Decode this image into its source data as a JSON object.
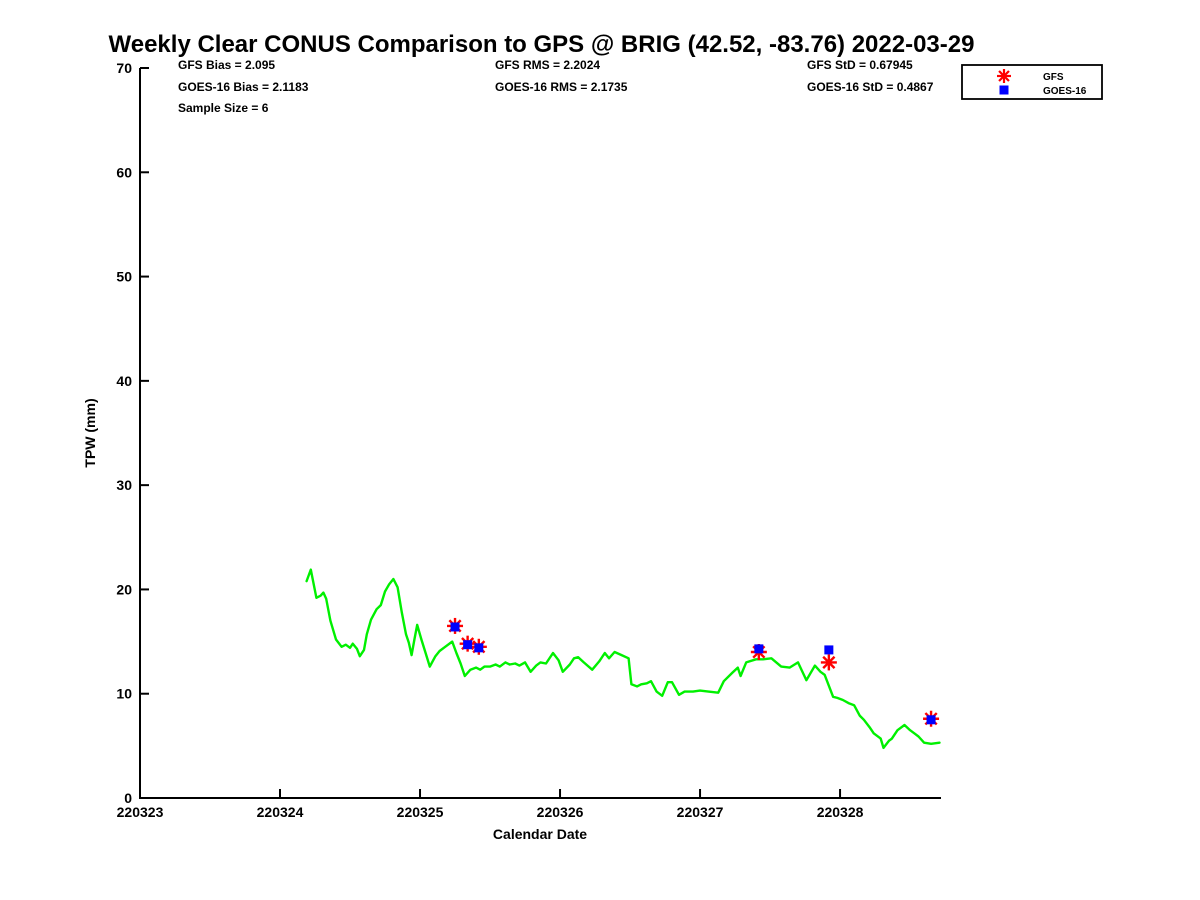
{
  "title": "Weekly Clear CONUS Comparison to GPS @ BRIG (42.52, -83.76) 2022-03-29",
  "stats": {
    "col1": [
      "GFS Bias = 2.095",
      "GOES-16 Bias = 2.1183",
      "Sample Size = 6"
    ],
    "col2": [
      "GFS RMS = 2.2024",
      "GOES-16 RMS = 2.1735"
    ],
    "col3": [
      "GFS StD = 0.67945",
      "GOES-16 StD = 0.4867"
    ]
  },
  "legend": {
    "items": [
      {
        "label": "GFS",
        "marker": "asterisk",
        "color": "#ff0000"
      },
      {
        "label": "GOES-16",
        "marker": "square",
        "color": "#0000ff"
      }
    ]
  },
  "chart_data": {
    "type": "line",
    "title": "Weekly Clear CONUS Comparison to GPS @ BRIG (42.52, -83.76) 2022-03-29",
    "xlabel": "Calendar Date",
    "ylabel": "TPW (mm)",
    "xlim": [
      220323,
      220328.721
    ],
    "ylim": [
      0,
      70
    ],
    "x_ticks": [
      220323,
      220324,
      220325,
      220326,
      220327,
      220328
    ],
    "y_ticks": [
      0,
      10,
      20,
      30,
      40,
      50,
      60,
      70
    ],
    "grid": false,
    "legend_position": "top-right",
    "series": [
      {
        "name": "GPS",
        "type": "line",
        "color": "#00f000",
        "points": [
          [
            220324.19,
            20.8
          ],
          [
            220324.22,
            21.9
          ],
          [
            220324.26,
            19.2
          ],
          [
            220324.29,
            19.4
          ],
          [
            220324.31,
            19.7
          ],
          [
            220324.33,
            19.1
          ],
          [
            220324.36,
            17.0
          ],
          [
            220324.4,
            15.2
          ],
          [
            220324.44,
            14.5
          ],
          [
            220324.47,
            14.7
          ],
          [
            220324.5,
            14.4
          ],
          [
            220324.52,
            14.8
          ],
          [
            220324.55,
            14.3
          ],
          [
            220324.57,
            13.6
          ],
          [
            220324.6,
            14.2
          ],
          [
            220324.62,
            15.7
          ],
          [
            220324.65,
            17.1
          ],
          [
            220324.69,
            18.1
          ],
          [
            220324.72,
            18.5
          ],
          [
            220324.75,
            19.8
          ],
          [
            220324.78,
            20.5
          ],
          [
            220324.81,
            21.0
          ],
          [
            220324.84,
            20.2
          ],
          [
            220324.87,
            17.8
          ],
          [
            220324.9,
            15.7
          ],
          [
            220324.92,
            14.9
          ],
          [
            220324.94,
            13.7
          ],
          [
            220324.96,
            15.2
          ],
          [
            220324.98,
            16.6
          ],
          [
            220325.01,
            15.2
          ],
          [
            220325.04,
            13.9
          ],
          [
            220325.07,
            12.6
          ],
          [
            220325.11,
            13.6
          ],
          [
            220325.14,
            14.1
          ],
          [
            220325.18,
            14.5
          ],
          [
            220325.23,
            15.0
          ],
          [
            220325.26,
            13.9
          ],
          [
            220325.29,
            12.9
          ],
          [
            220325.32,
            11.7
          ],
          [
            220325.36,
            12.3
          ],
          [
            220325.4,
            12.5
          ],
          [
            220325.43,
            12.3
          ],
          [
            220325.46,
            12.6
          ],
          [
            220325.5,
            12.6
          ],
          [
            220325.54,
            12.8
          ],
          [
            220325.57,
            12.6
          ],
          [
            220325.61,
            13.0
          ],
          [
            220325.64,
            12.8
          ],
          [
            220325.68,
            12.9
          ],
          [
            220325.71,
            12.7
          ],
          [
            220325.75,
            13.0
          ],
          [
            220325.79,
            12.1
          ],
          [
            220325.83,
            12.7
          ],
          [
            220325.86,
            13.0
          ],
          [
            220325.9,
            12.9
          ],
          [
            220325.95,
            13.9
          ],
          [
            220325.99,
            13.2
          ],
          [
            220326.02,
            12.1
          ],
          [
            220326.07,
            12.8
          ],
          [
            220326.1,
            13.4
          ],
          [
            220326.13,
            13.5
          ],
          [
            220326.17,
            13.0
          ],
          [
            220326.23,
            12.3
          ],
          [
            220326.28,
            13.1
          ],
          [
            220326.32,
            13.9
          ],
          [
            220326.35,
            13.4
          ],
          [
            220326.39,
            14.0
          ],
          [
            220326.44,
            13.7
          ],
          [
            220326.49,
            13.4
          ],
          [
            220326.51,
            10.9
          ],
          [
            220326.55,
            10.7
          ],
          [
            220326.58,
            10.9
          ],
          [
            220326.62,
            11.0
          ],
          [
            220326.65,
            11.2
          ],
          [
            220326.69,
            10.2
          ],
          [
            220326.73,
            9.8
          ],
          [
            220326.77,
            11.1
          ],
          [
            220326.8,
            11.1
          ],
          [
            220326.85,
            9.9
          ],
          [
            220326.89,
            10.2
          ],
          [
            220326.95,
            10.2
          ],
          [
            220327.0,
            10.3
          ],
          [
            220327.06,
            10.2
          ],
          [
            220327.13,
            10.1
          ],
          [
            220327.17,
            11.2
          ],
          [
            220327.23,
            12.0
          ],
          [
            220327.27,
            12.5
          ],
          [
            220327.29,
            11.7
          ],
          [
            220327.33,
            13.0
          ],
          [
            220327.4,
            13.3
          ],
          [
            220327.45,
            13.3
          ],
          [
            220327.51,
            13.4
          ],
          [
            220327.58,
            12.6
          ],
          [
            220327.64,
            12.5
          ],
          [
            220327.7,
            13.0
          ],
          [
            220327.76,
            11.3
          ],
          [
            220327.82,
            12.7
          ],
          [
            220327.86,
            12.1
          ],
          [
            220327.89,
            11.8
          ],
          [
            220327.95,
            9.7
          ],
          [
            220327.98,
            9.6
          ],
          [
            220328.02,
            9.4
          ],
          [
            220328.06,
            9.1
          ],
          [
            220328.1,
            8.9
          ],
          [
            220328.14,
            7.9
          ],
          [
            220328.17,
            7.5
          ],
          [
            220328.21,
            6.8
          ],
          [
            220328.24,
            6.2
          ],
          [
            220328.29,
            5.7
          ],
          [
            220328.31,
            4.8
          ],
          [
            220328.35,
            5.5
          ],
          [
            220328.37,
            5.7
          ],
          [
            220328.41,
            6.5
          ],
          [
            220328.46,
            7.0
          ],
          [
            220328.5,
            6.5
          ],
          [
            220328.53,
            6.2
          ],
          [
            220328.56,
            5.9
          ],
          [
            220328.6,
            5.3
          ],
          [
            220328.65,
            5.2
          ],
          [
            220328.71,
            5.3
          ]
        ]
      },
      {
        "name": "GFS",
        "type": "scatter",
        "marker": "asterisk",
        "color": "#ff0000",
        "points": [
          [
            220325.25,
            16.5
          ],
          [
            220325.34,
            14.8
          ],
          [
            220325.42,
            14.5
          ],
          [
            220327.42,
            14.0
          ],
          [
            220327.92,
            13.0
          ],
          [
            220328.65,
            7.6
          ]
        ]
      },
      {
        "name": "GOES-16",
        "type": "scatter",
        "marker": "square",
        "color": "#0000ff",
        "points": [
          [
            220325.25,
            16.4
          ],
          [
            220325.34,
            14.7
          ],
          [
            220325.42,
            14.4
          ],
          [
            220327.42,
            14.3
          ],
          [
            220327.92,
            14.2
          ],
          [
            220328.65,
            7.5
          ]
        ]
      }
    ]
  }
}
